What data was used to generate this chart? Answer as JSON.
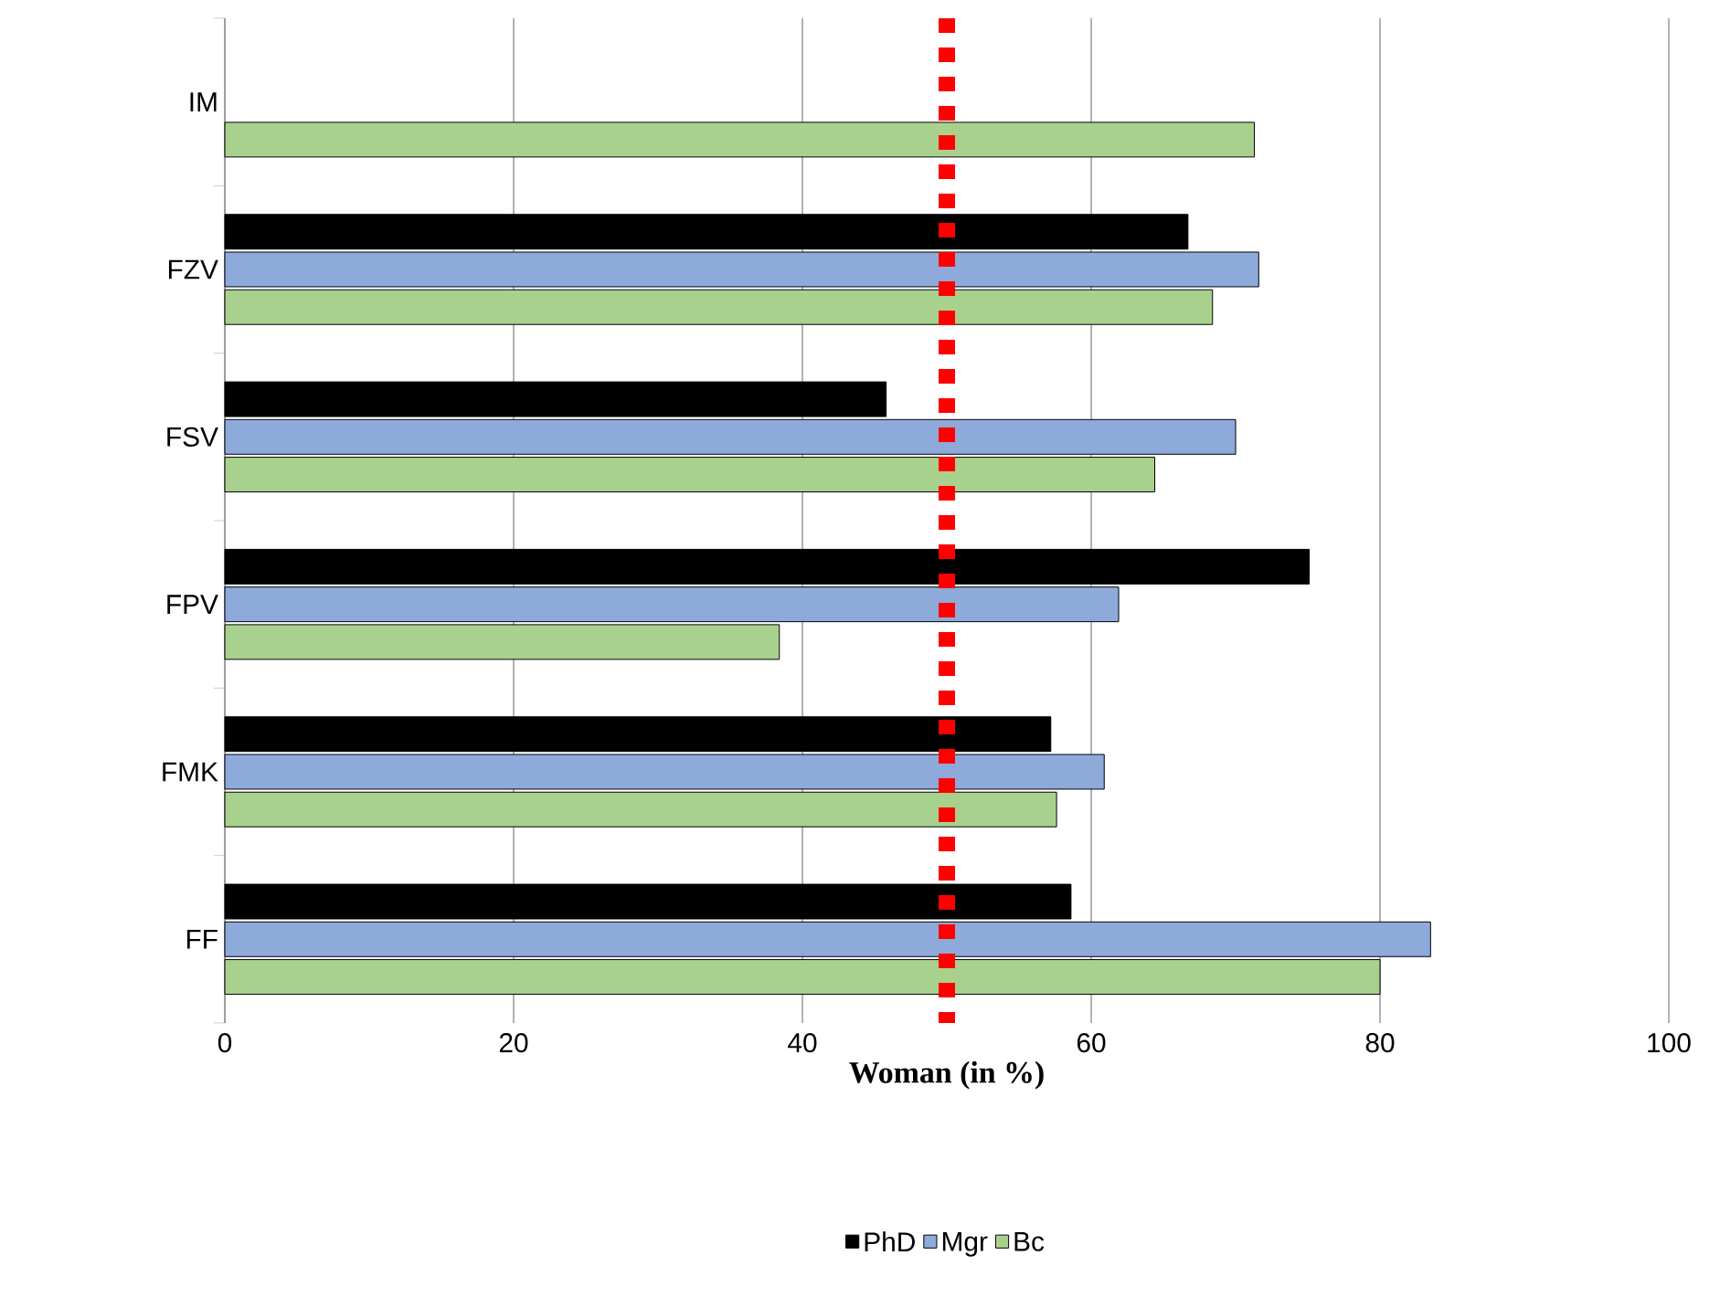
{
  "chart_data": {
    "type": "bar",
    "orientation": "horizontal",
    "xlabel": "Woman (in %)",
    "categories": [
      "IM",
      "FZV",
      "FSV",
      "FPV",
      "FMK",
      "FF"
    ],
    "series": [
      {
        "name": "PhD",
        "color": "#000000",
        "values": [
          null,
          66.7,
          45.8,
          75.1,
          57.2,
          58.6
        ]
      },
      {
        "name": "Mgr",
        "color": "#8eaadb",
        "values": [
          null,
          71.6,
          70.0,
          61.9,
          60.9,
          83.5
        ]
      },
      {
        "name": "Bc",
        "color": "#a9d18e",
        "values": [
          71.3,
          68.4,
          64.4,
          38.4,
          57.6,
          80.0
        ]
      }
    ],
    "xlim": [
      0,
      100
    ],
    "xticks": [
      0,
      20,
      40,
      60,
      80,
      100
    ],
    "grid": "x",
    "legend": "bottom",
    "ref_lines": [
      {
        "axis": "x",
        "value": 50,
        "color": "#ff0000",
        "line_style": "dotted"
      }
    ]
  }
}
